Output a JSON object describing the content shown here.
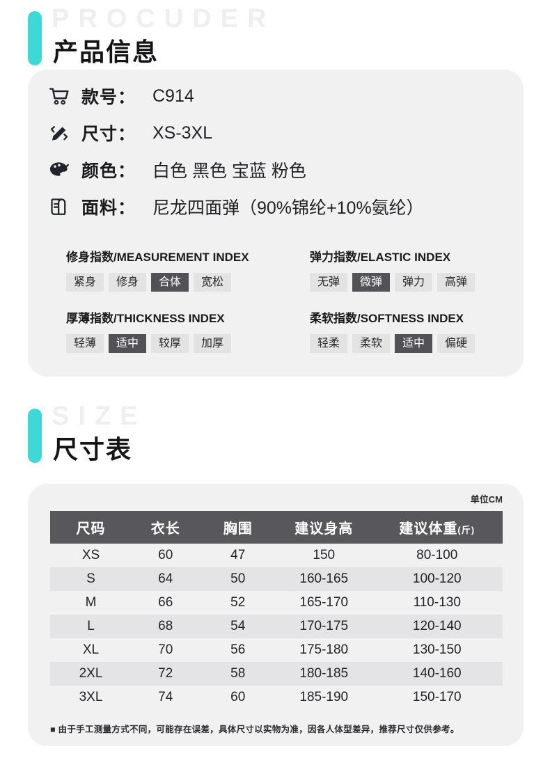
{
  "colors": {
    "accent": "#3DD9D6",
    "card_bg": "#F1F1F2",
    "dark": "#58585C",
    "tag_bg": "#E3E3E4",
    "tag_selected_bg": "#515156",
    "stripe": "#E4E4E6",
    "watermark": "#EFEFEF"
  },
  "section1": {
    "watermark": "PROCUDER",
    "title": "产品信息"
  },
  "product": {
    "rows": [
      {
        "icon": "cart-icon",
        "label": "款号：",
        "value": "C914"
      },
      {
        "icon": "ruler-pencil-icon",
        "label": "尺寸：",
        "value": "XS-3XL"
      },
      {
        "icon": "palette-icon",
        "label": "颜色：",
        "value": "白色 黑色 宝蓝 粉色"
      },
      {
        "icon": "fabric-icon",
        "label": "面料：",
        "value": "尼龙四面弹（90%锦纶+10%氨纶）"
      }
    ],
    "indexes": [
      {
        "title": "修身指数/MEASUREMENT INDEX",
        "options": [
          "紧身",
          "修身",
          "合体",
          "宽松"
        ],
        "selected": 2
      },
      {
        "title": "弹力指数/ELASTIC INDEX",
        "options": [
          "无弹",
          "微弹",
          "弹力",
          "高弹"
        ],
        "selected": 1
      },
      {
        "title": "厚薄指数/THICKNESS INDEX",
        "options": [
          "轻薄",
          "适中",
          "较厚",
          "加厚"
        ],
        "selected": 1
      },
      {
        "title": "柔软指数/SOFTNESS INDEX",
        "options": [
          "轻柔",
          "柔软",
          "适中",
          "偏硬"
        ],
        "selected": 2
      }
    ]
  },
  "section2": {
    "watermark": "SIZE",
    "title": "尺寸表"
  },
  "size_chart": {
    "unit": "单位CM",
    "headers": [
      {
        "text": "尺码",
        "suffix": ""
      },
      {
        "text": "衣长",
        "suffix": ""
      },
      {
        "text": "胸围",
        "suffix": ""
      },
      {
        "text": "建议身高",
        "suffix": ""
      },
      {
        "text": "建议体重",
        "suffix": "(斤)"
      }
    ],
    "rows": [
      [
        "XS",
        "60",
        "47",
        "150",
        "80-100"
      ],
      [
        "S",
        "64",
        "50",
        "160-165",
        "100-120"
      ],
      [
        "M",
        "66",
        "52",
        "165-170",
        "110-130"
      ],
      [
        "L",
        "68",
        "54",
        "170-175",
        "120-140"
      ],
      [
        "XL",
        "70",
        "56",
        "175-180",
        "130-150"
      ],
      [
        "2XL",
        "72",
        "58",
        "180-185",
        "140-160"
      ],
      [
        "3XL",
        "74",
        "60",
        "185-190",
        "150-170"
      ]
    ],
    "note": "■ 由于手工测量方式不同，可能存在误差，具体尺寸以实物为准，因各人体型差异，推荐尺寸仅供参考。"
  }
}
